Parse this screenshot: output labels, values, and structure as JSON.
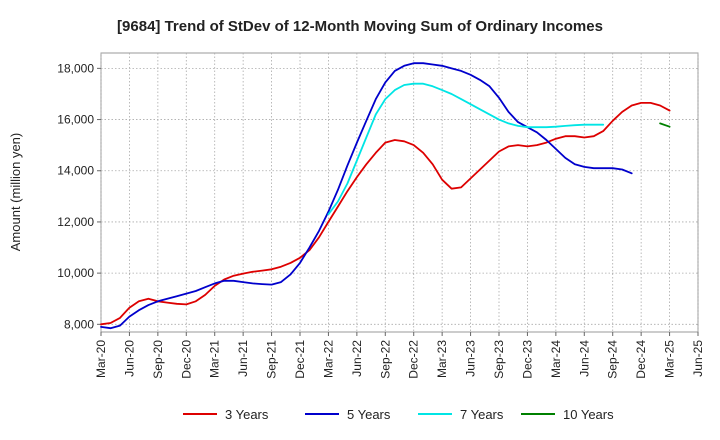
{
  "chart_data": {
    "type": "line",
    "title": "[9684]  Trend of StDev of 12-Month Moving Sum of Ordinary Incomes",
    "xlabel": "",
    "ylabel": "Amount (million yen)",
    "ylim": [
      7700,
      18600
    ],
    "yticks": [
      8000,
      10000,
      12000,
      14000,
      16000,
      18000
    ],
    "ytick_labels": [
      "8,000",
      "10,000",
      "12,000",
      "14,000",
      "16,000",
      "18,000"
    ],
    "xtick_labels": [
      "Mar-20",
      "Jun-20",
      "Sep-20",
      "Dec-20",
      "Mar-21",
      "Jun-21",
      "Sep-21",
      "Dec-21",
      "Mar-22",
      "Jun-22",
      "Sep-22",
      "Dec-22",
      "Mar-23",
      "Jun-23",
      "Sep-23",
      "Dec-23",
      "Mar-24",
      "Jun-24",
      "Sep-24",
      "Dec-24",
      "Mar-25",
      "Jun-25"
    ],
    "grid": true,
    "legend_position": "bottom",
    "series": [
      {
        "name": "3 Years",
        "color": "#dd0000",
        "start_index": 0,
        "values": [
          8000,
          8050,
          8250,
          8650,
          8900,
          9000,
          8900,
          8850,
          8800,
          8780,
          8900,
          9150,
          9500,
          9750,
          9900,
          9980,
          10050,
          10100,
          10150,
          10250,
          10400,
          10600,
          10900,
          11400,
          12000,
          12600,
          13200,
          13750,
          14250,
          14700,
          15100,
          15200,
          15150,
          15000,
          14700,
          14250,
          13650,
          13300,
          13350,
          13700,
          14050,
          14400,
          14750,
          14950,
          15000,
          14950,
          15000,
          15100,
          15250,
          15350,
          15350,
          15300,
          15350,
          15550,
          15950,
          16300,
          16550,
          16650,
          16650,
          16550,
          16350
        ]
      },
      {
        "name": "5 Years",
        "color": "#0000cc",
        "start_index": 0,
        "values": [
          7900,
          7850,
          7950,
          8300,
          8550,
          8750,
          8900,
          9000,
          9100,
          9200,
          9300,
          9450,
          9600,
          9700,
          9700,
          9650,
          9600,
          9570,
          9550,
          9650,
          9950,
          10400,
          11000,
          11650,
          12400,
          13250,
          14200,
          15100,
          15950,
          16800,
          17450,
          17900,
          18100,
          18200,
          18200,
          18150,
          18100,
          18000,
          17900,
          17750,
          17550,
          17300,
          16850,
          16300,
          15900,
          15700,
          15500,
          15200,
          14850,
          14500,
          14250,
          14150,
          14100,
          14100,
          14100,
          14050,
          13900
        ]
      },
      {
        "name": "7 Years",
        "color": "#00e5e5",
        "start_index": 24,
        "values": [
          12300,
          12800,
          13500,
          14400,
          15300,
          16200,
          16800,
          17150,
          17350,
          17400,
          17400,
          17300,
          17150,
          17000,
          16800,
          16600,
          16400,
          16200,
          16000,
          15850,
          15750,
          15700,
          15700,
          15700,
          15720,
          15750,
          15780,
          15800,
          15800,
          15800
        ]
      },
      {
        "name": "10 Years",
        "color": "#008000",
        "start_index": 59,
        "values": [
          15850,
          15720
        ]
      }
    ]
  }
}
